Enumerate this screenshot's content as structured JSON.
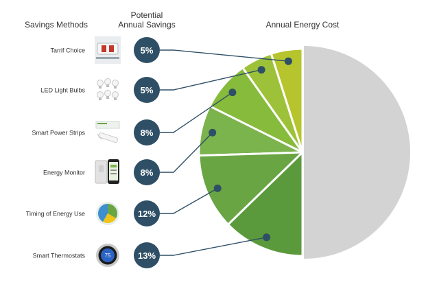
{
  "headers": {
    "methods": "Savings Methods",
    "savings_line1": "Potential",
    "savings_line2": "Annual Savings",
    "cost": "Annual Energy Cost"
  },
  "colors": {
    "badge": "#2e4f66",
    "badge_text": "#ffffff",
    "connector": "#2e4f66",
    "remaining": "#d3d3d3",
    "slices": [
      "#b6c42e",
      "#9dc23a",
      "#86bb3b",
      "#7bb34d",
      "#6aa544",
      "#5a9a3c"
    ]
  },
  "chart_data": {
    "type": "pie",
    "title": "Annual Energy Cost",
    "categories": [
      "Tarrif Choice",
      "LED Light Bulbs",
      "Smart Power Strips",
      "Energy Monitor",
      "Timing of Energy Use",
      "Smart Thermostats"
    ],
    "values": [
      5,
      5,
      8,
      8,
      12,
      13
    ],
    "value_labels": [
      "5%",
      "5%",
      "8%",
      "8%",
      "12%",
      "13%"
    ],
    "remaining_value": 49,
    "icons": [
      "electric-meter-icon",
      "led-bulbs-icon",
      "power-strip-icon",
      "energy-monitor-icon",
      "time-of-use-chart-icon",
      "thermostat-icon"
    ],
    "thermostat_reading": "75"
  }
}
